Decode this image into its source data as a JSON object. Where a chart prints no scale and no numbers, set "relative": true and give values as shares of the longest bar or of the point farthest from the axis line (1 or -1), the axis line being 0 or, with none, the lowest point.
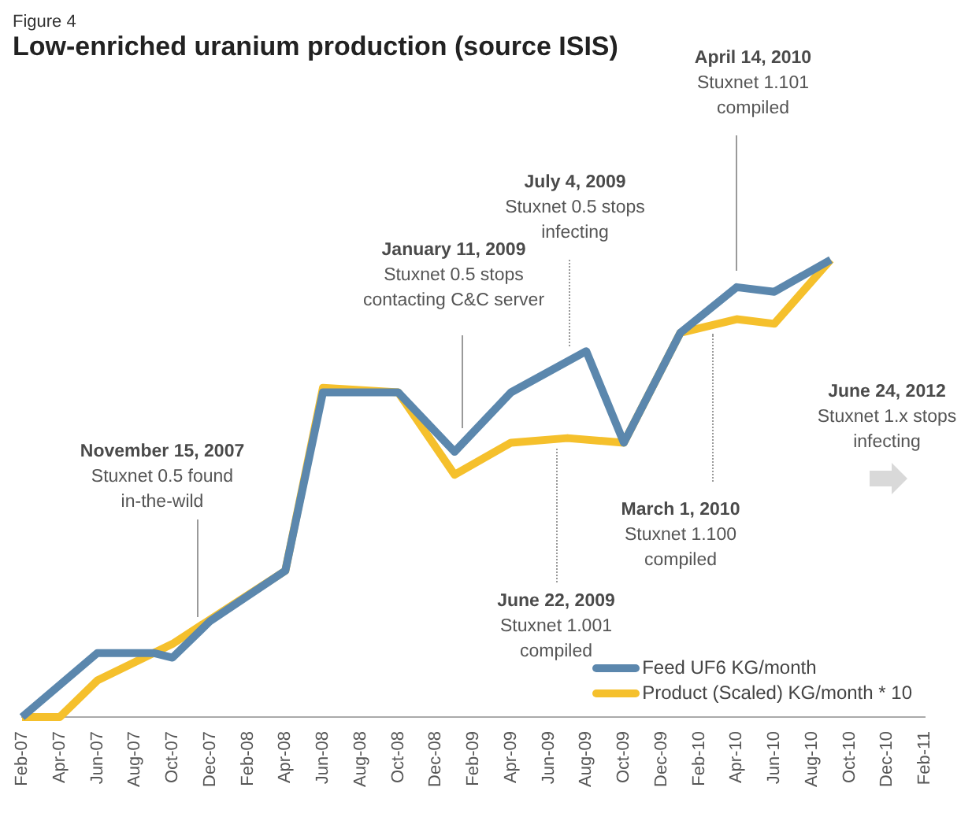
{
  "chart_data": {
    "type": "line",
    "subtitle": "Figure 4",
    "title": "Low-enriched uranium production (source ISIS)",
    "relative": true,
    "xlim": [
      "2007-02",
      "2011-02"
    ],
    "xticks": [
      {
        "value": "2007-02",
        "label": "Feb-07"
      },
      {
        "value": "2007-04",
        "label": "Apr-07"
      },
      {
        "value": "2007-06",
        "label": "Jun-07"
      },
      {
        "value": "2007-08",
        "label": "Aug-07"
      },
      {
        "value": "2007-10",
        "label": "Oct-07"
      },
      {
        "value": "2007-12",
        "label": "Dec-07"
      },
      {
        "value": "2008-02",
        "label": "Feb-08"
      },
      {
        "value": "2008-04",
        "label": "Apr-08"
      },
      {
        "value": "2008-06",
        "label": "Jun-08"
      },
      {
        "value": "2008-08",
        "label": "Aug-08"
      },
      {
        "value": "2008-10",
        "label": "Oct-08"
      },
      {
        "value": "2008-12",
        "label": "Dec-08"
      },
      {
        "value": "2009-02",
        "label": "Feb-09"
      },
      {
        "value": "2009-04",
        "label": "Apr-09"
      },
      {
        "value": "2009-06",
        "label": "Jun-09"
      },
      {
        "value": "2009-08",
        "label": "Aug-09"
      },
      {
        "value": "2009-10",
        "label": "Oct-09"
      },
      {
        "value": "2009-12",
        "label": "Dec-09"
      },
      {
        "value": "2010-02",
        "label": "Feb-10"
      },
      {
        "value": "2010-04",
        "label": "Apr-10"
      },
      {
        "value": "2010-06",
        "label": "Jun-10"
      },
      {
        "value": "2010-08",
        "label": "Aug-10"
      },
      {
        "value": "2010-10",
        "label": "Oct-10"
      },
      {
        "value": "2010-12",
        "label": "Dec-10"
      },
      {
        "value": "2011-02",
        "label": "Feb-11"
      }
    ],
    "series": [
      {
        "name": "Feed UF6 KG/month",
        "color": "#5b87ad",
        "x": [
          "2007-02",
          "2007-06",
          "2007-09",
          "2007-10",
          "2007-12",
          "2008-04",
          "2008-06",
          "2008-10",
          "2009-01",
          "2009-04",
          "2009-08",
          "2009-10",
          "2010-01",
          "2010-04",
          "2010-06",
          "2010-09"
        ],
        "values": [
          0,
          0.14,
          0.14,
          0.13,
          0.21,
          0.32,
          0.71,
          0.71,
          0.58,
          0.71,
          0.8,
          0.6,
          0.84,
          0.94,
          0.93,
          1
        ]
      },
      {
        "name": "Product (Scaled) KG/month * 10",
        "color": "#f5c02c",
        "x": [
          "2007-02",
          "2007-04",
          "2007-06",
          "2007-10",
          "2008-04",
          "2008-06",
          "2008-10",
          "2009-01",
          "2009-04",
          "2009-07",
          "2009-10",
          "2010-01",
          "2010-04",
          "2010-06",
          "2010-09"
        ],
        "values": [
          0,
          0,
          0.08,
          0.16,
          0.32,
          0.72,
          0.71,
          0.53,
          0.6,
          0.61,
          0.6,
          0.84,
          0.87,
          0.86,
          1
        ]
      }
    ],
    "annotations": [
      "November 15, 2007\nStuxnet 0.5 found\nin-the-wild",
      "January 11, 2009\nStuxnet 0.5 stops\ncontacting C&C server",
      "June 22, 2009\nStuxnet 1.001\ncompiled",
      "July 4, 2009\nStuxnet 0.5 stops\ninfecting",
      "March 1, 2010\nStuxnet 1.100\ncompiled",
      "April 14, 2010\nStuxnet 1.101\ncompiled",
      "June 24, 2012\nStuxnet 1.x stops\ninfecting"
    ],
    "legend": "bottom right",
    "grid": false,
    "marker": "none"
  }
}
